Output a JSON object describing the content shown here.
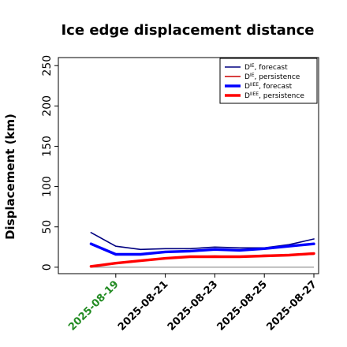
{
  "chart_data": {
    "type": "line",
    "title": "Ice edge displacement distance",
    "xlabel": "",
    "ylabel": "Displacement (km)",
    "ylim": [
      -8,
      260
    ],
    "yticks": [
      0,
      50,
      100,
      150,
      200,
      250
    ],
    "xlim": [
      "2025-08-17",
      "2025-08-27"
    ],
    "xticks": [
      "2025-08-19",
      "2025-08-21",
      "2025-08-23",
      "2025-08-25",
      "2025-08-27"
    ],
    "highlight_tick": "2025-08-19",
    "highlight_color": "#228b22",
    "grid": false,
    "legend_position": "upper-right",
    "x": [
      "2025-08-18",
      "2025-08-19",
      "2025-08-20",
      "2025-08-21",
      "2025-08-22",
      "2025-08-23",
      "2025-08-24",
      "2025-08-25",
      "2025-08-26",
      "2025-08-27"
    ],
    "series": [
      {
        "name": "D^IE, forecast",
        "label_base": "D",
        "label_sup": "IE",
        "label_rest": ", forecast",
        "color": "#000080",
        "width": "thin",
        "values": [
          43,
          26,
          22,
          23,
          23,
          25,
          24,
          24,
          28,
          35
        ]
      },
      {
        "name": "D^IE, persistence",
        "label_base": "D",
        "label_sup": "IE",
        "label_rest": ", persistence",
        "color": "#cc0000",
        "width": "thin",
        "values": [
          1,
          5,
          8,
          11,
          13,
          14,
          13,
          15,
          15,
          16
        ]
      },
      {
        "name": "D^IIEE, forecast",
        "label_base": "D",
        "label_sup": "IIEE",
        "label_rest": ", forecast",
        "color": "#0000ff",
        "width": "thick",
        "values": [
          29,
          16,
          16,
          19,
          20,
          22,
          21,
          23,
          26,
          29
        ]
      },
      {
        "name": "D^IIEE, persistence",
        "label_base": "D",
        "label_sup": "IIEE",
        "label_rest": ", persistence",
        "color": "#ff0000",
        "width": "thick",
        "values": [
          1,
          5,
          8,
          11,
          13,
          13,
          13,
          14,
          15,
          17
        ]
      }
    ],
    "zero_line": {
      "value": 0,
      "x_start": "2025-08-18",
      "x_end": "2025-08-27",
      "color": "#888888"
    }
  }
}
